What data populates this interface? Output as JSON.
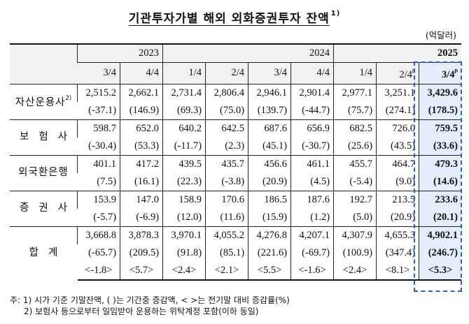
{
  "title": "기관투자가별 해외 외화증권투자 잔액",
  "title_note": "1)",
  "unit": "(억달러)",
  "years": [
    "2023",
    "2024",
    "2025"
  ],
  "quarters": [
    "3/4",
    "4/4",
    "1/4",
    "2/4",
    "3/4",
    "4/4",
    "1/4",
    "2/4",
    "3/4"
  ],
  "prelim_mark": "p",
  "rows": [
    {
      "label": "자산운용사",
      "label_note": "2)",
      "values": [
        "2,515.2",
        "2,662.1",
        "2,731.4",
        "2,806.4",
        "2,946.1",
        "2,901.4",
        "2,977.1",
        "3,251.1",
        "3,429.6"
      ],
      "changes": [
        "(-37.1)",
        "(146.9)",
        "(69.3)",
        "(75.0)",
        "(139.7)",
        "(-44.7)",
        "(75.7)",
        "(274.1)",
        "(178.5)"
      ]
    },
    {
      "label": "보험사",
      "values": [
        "598.7",
        "652.0",
        "640.2",
        "642.5",
        "687.6",
        "656.9",
        "682.5",
        "726.0",
        "759.5"
      ],
      "changes": [
        "(-30.4)",
        "(53.3)",
        "(-11.7)",
        "(2.3)",
        "(45.1)",
        "(-30.7)",
        "(25.6)",
        "(43.5)",
        "(33.6)"
      ]
    },
    {
      "label": "외국환은행",
      "values": [
        "401.1",
        "417.2",
        "439.5",
        "435.7",
        "456.6",
        "461.1",
        "455.7",
        "464.7",
        "479.3"
      ],
      "changes": [
        "(7.5)",
        "(16.1)",
        "(22.3)",
        "(-3.8)",
        "(20.9)",
        "(4.5)",
        "(-5.4)",
        "(9.0)",
        "(14.6)"
      ]
    },
    {
      "label": "증권사",
      "values": [
        "153.9",
        "147.0",
        "158.9",
        "170.6",
        "186.5",
        "187.6",
        "192.7",
        "213.5",
        "233.6"
      ],
      "changes": [
        "(-5.7)",
        "(-6.9)",
        "(12.0)",
        "(11.6)",
        "(15.9)",
        "(1.2)",
        "(5.0)",
        "(20.9)",
        "(20.1)"
      ]
    }
  ],
  "total": {
    "label": "합계",
    "values": [
      "3,668.8",
      "3,878.3",
      "3,970.1",
      "4,055.2",
      "4,276.8",
      "4,207.1",
      "4,307.9",
      "4,655.3",
      "4,902.1"
    ],
    "changes": [
      "(-65.7)",
      "(209.5)",
      "(91.8)",
      "(85.1)",
      "(221.6)",
      "(-69.7)",
      "(100.9)",
      "(347.4)",
      "(246.7)"
    ],
    "rates": [
      "<-1.8>",
      "<5.7>",
      "<2.4>",
      "<2.1>",
      "<5.5>",
      "<-1.6>",
      "<2.4>",
      "<8.1>",
      "<5.3>"
    ]
  },
  "notes": [
    "주: 1) 시가 기준 기말잔액, ( )는 기간중 증감액, < >는 전기말 대비 증감률(%)",
    "2) 보험사 등으로부터 일임받아 운용하는 위탁계정 포함(이하 동일)"
  ]
}
